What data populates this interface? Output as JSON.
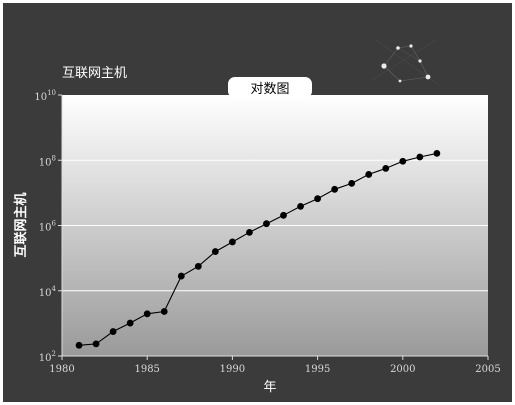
{
  "header": {
    "left_title": "互联网主机",
    "tab_title": "对数图"
  },
  "chart_data": {
    "type": "line",
    "title": "对数图",
    "xlabel": "年",
    "ylabel": "互联网主机",
    "y_scale": "log",
    "xlim": [
      1980,
      2005
    ],
    "ylim": [
      100,
      10000000000
    ],
    "x_ticks": [
      "1980",
      "1985",
      "1990",
      "1995",
      "2000",
      "2005"
    ],
    "y_ticks": [
      {
        "base": "10",
        "exp": "2"
      },
      {
        "base": "10",
        "exp": "4"
      },
      {
        "base": "10",
        "exp": "6"
      },
      {
        "base": "10",
        "exp": "8"
      },
      {
        "base": "10",
        "exp": "10"
      }
    ],
    "grid": true,
    "series": [
      {
        "x": [
          1981,
          1982,
          1983,
          1984,
          1985,
          1986,
          1987,
          1988,
          1989,
          1990,
          1991,
          1992,
          1993,
          1994,
          1995,
          1996,
          1997,
          1998,
          1999,
          2000,
          2001,
          2002
        ],
        "y": [
          213,
          235,
          562,
          1024,
          1961,
          2308,
          28174,
          56000,
          159000,
          313000,
          617000,
          1136000,
          2056000,
          3864000,
          6642000,
          12881000,
          19540000,
          36739000,
          56218000,
          93047000,
          125888000,
          162128000
        ]
      }
    ]
  },
  "colors": {
    "background": "#3b3b3b",
    "marker": "#000000",
    "line": "#000000",
    "axis": "#dddddd"
  }
}
